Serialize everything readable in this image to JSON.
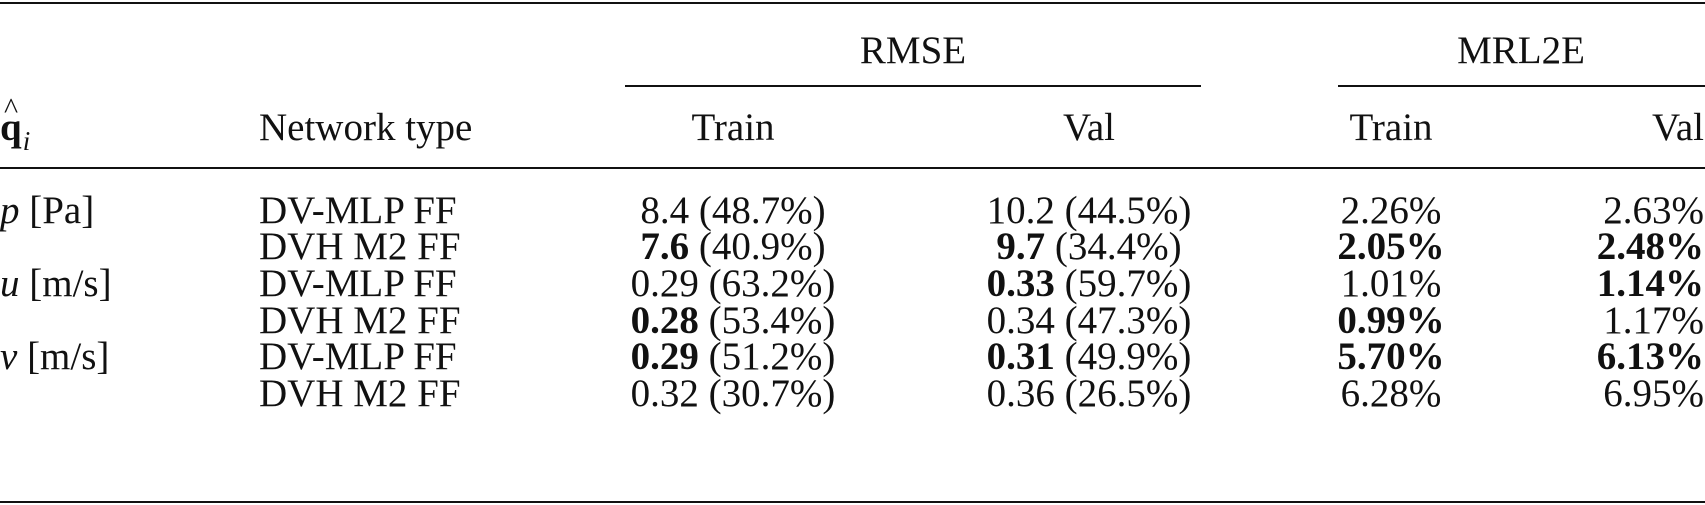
{
  "header": {
    "group_rmse": "RMSE",
    "group_mrl2e": "MRL2E",
    "col_q_symbol": "q",
    "col_q_hat": "^",
    "col_q_sub": "i",
    "col_network": "Network type",
    "col_rmse_train": "Train",
    "col_rmse_val": "Val",
    "col_mrl2e_train": "Train",
    "col_mrl2e_val": "Val"
  },
  "rows": [
    {
      "var": "p",
      "unit": "[Pa]",
      "network": "DV-MLP FF",
      "rmse_train": "8.4",
      "rmse_train_pct": "(48.7%)",
      "rmse_train_bold": false,
      "rmse_val": "10.2",
      "rmse_val_pct": "(44.5%)",
      "rmse_val_bold": false,
      "mrl2e_train": "2.26%",
      "mrl2e_train_bold": false,
      "mrl2e_val": "2.63%",
      "mrl2e_val_bold": false
    },
    {
      "var": "",
      "unit": "",
      "network": "DVH M2 FF",
      "rmse_train": "7.6",
      "rmse_train_pct": "(40.9%)",
      "rmse_train_bold": true,
      "rmse_val": "9.7",
      "rmse_val_pct": "(34.4%)",
      "rmse_val_bold": true,
      "mrl2e_train": "2.05%",
      "mrl2e_train_bold": true,
      "mrl2e_val": "2.48%",
      "mrl2e_val_bold": true
    },
    {
      "var": "u",
      "unit": "[m/s]",
      "network": "DV-MLP FF",
      "rmse_train": "0.29",
      "rmse_train_pct": "(63.2%)",
      "rmse_train_bold": false,
      "rmse_val": "0.33",
      "rmse_val_pct": "(59.7%)",
      "rmse_val_bold": true,
      "mrl2e_train": "1.01%",
      "mrl2e_train_bold": false,
      "mrl2e_val": "1.14%",
      "mrl2e_val_bold": true
    },
    {
      "var": "",
      "unit": "",
      "network": "DVH M2 FF",
      "rmse_train": "0.28",
      "rmse_train_pct": "(53.4%)",
      "rmse_train_bold": true,
      "rmse_val": "0.34",
      "rmse_val_pct": "(47.3%)",
      "rmse_val_bold": false,
      "mrl2e_train": "0.99%",
      "mrl2e_train_bold": true,
      "mrl2e_val": "1.17%",
      "mrl2e_val_bold": false
    },
    {
      "var": "v",
      "unit": "[m/s]",
      "network": "DV-MLP FF",
      "rmse_train": "0.29",
      "rmse_train_pct": "(51.2%)",
      "rmse_train_bold": true,
      "rmse_val": "0.31",
      "rmse_val_pct": "(49.9%)",
      "rmse_val_bold": true,
      "mrl2e_train": "5.70%",
      "mrl2e_train_bold": true,
      "mrl2e_val": "6.13%",
      "mrl2e_val_bold": true
    },
    {
      "var": "",
      "unit": "",
      "network": "DVH M2 FF",
      "rmse_train": "0.32",
      "rmse_train_pct": "(30.7%)",
      "rmse_train_bold": false,
      "rmse_val": "0.36",
      "rmse_val_pct": "(26.5%)",
      "rmse_val_bold": false,
      "mrl2e_train": "6.28%",
      "mrl2e_train_bold": false,
      "mrl2e_val": "6.95%",
      "mrl2e_val_bold": false
    }
  ]
}
